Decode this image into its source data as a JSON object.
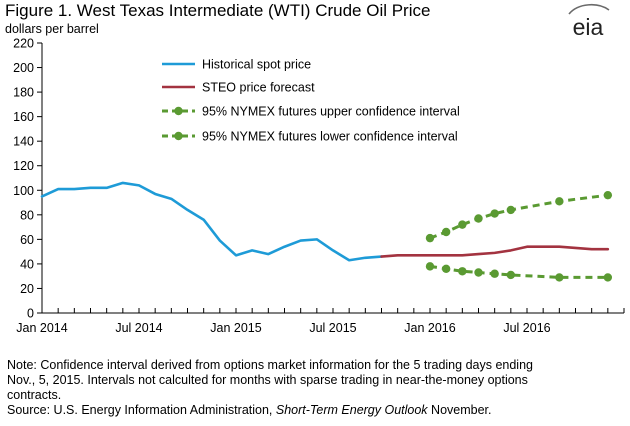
{
  "header": {
    "title": "Figure 1. West Texas Intermediate (WTI) Crude Oil Price",
    "units": "dollars per barrel",
    "logo_text": "eia"
  },
  "notes": {
    "line1": "Note: Confidence interval derived from options market information for the 5 trading days ending",
    "line2": "Nov., 5, 2015.  Intervals not calculted for months with sparse trading in near-the-money options",
    "line3": "contracts.",
    "source_prefix": "Source: U.S. Energy Information Administration, ",
    "source_italic": "Short-Term Energy Outlook",
    "source_suffix": " November."
  },
  "chart_data": {
    "type": "line",
    "title": "Figure 1. West Texas Intermediate (WTI) Crude Oil Price",
    "ylabel": "dollars per barrel",
    "ylim": [
      0,
      220
    ],
    "yticks": [
      0,
      20,
      40,
      60,
      80,
      100,
      120,
      140,
      160,
      180,
      200,
      220
    ],
    "xlim": [
      "2014-01",
      "2016-12"
    ],
    "xticks": [
      {
        "date": "2014-01",
        "label": "Jan 2014"
      },
      {
        "date": "2014-07",
        "label": "Jul 2014"
      },
      {
        "date": "2015-01",
        "label": "Jan 2015"
      },
      {
        "date": "2015-07",
        "label": "Jul 2015"
      },
      {
        "date": "2016-01",
        "label": "Jan 2016"
      },
      {
        "date": "2016-07",
        "label": "Jul 2016"
      }
    ],
    "grid": false,
    "legend_position": "top-center",
    "series": [
      {
        "name": "Historical spot price",
        "color": "#1e9bd7",
        "style": "solid",
        "x": [
          "2014-01",
          "2014-02",
          "2014-03",
          "2014-04",
          "2014-05",
          "2014-06",
          "2014-07",
          "2014-08",
          "2014-09",
          "2014-10",
          "2014-11",
          "2014-12",
          "2015-01",
          "2015-02",
          "2015-03",
          "2015-04",
          "2015-05",
          "2015-06",
          "2015-07",
          "2015-08",
          "2015-09",
          "2015-10"
        ],
        "y": [
          95,
          101,
          101,
          102,
          102,
          106,
          104,
          97,
          93,
          84,
          76,
          59,
          47,
          51,
          48,
          54,
          59,
          60,
          51,
          43,
          45,
          46
        ]
      },
      {
        "name": "STEO price forecast",
        "color": "#a33340",
        "style": "solid",
        "x": [
          "2015-10",
          "2015-11",
          "2015-12",
          "2016-01",
          "2016-02",
          "2016-03",
          "2016-04",
          "2016-05",
          "2016-06",
          "2016-07",
          "2016-08",
          "2016-09",
          "2016-10",
          "2016-11",
          "2016-12"
        ],
        "y": [
          46,
          47,
          47,
          47,
          47,
          47,
          48,
          49,
          51,
          54,
          54,
          54,
          53,
          52,
          52
        ]
      },
      {
        "name": "95% NYMEX futures upper confidence interval",
        "color": "#5a9a32",
        "style": "dashed-markers",
        "x": [
          "2016-01",
          "2016-02",
          "2016-03",
          "2016-04",
          "2016-05",
          "2016-06",
          "2016-09",
          "2016-12"
        ],
        "y": [
          61,
          66,
          72,
          77,
          81,
          84,
          91,
          96
        ]
      },
      {
        "name": "95% NYMEX futures lower confidence interval",
        "color": "#5a9a32",
        "style": "dashed-markers",
        "x": [
          "2016-01",
          "2016-02",
          "2016-03",
          "2016-04",
          "2016-05",
          "2016-06",
          "2016-09",
          "2016-12"
        ],
        "y": [
          38,
          36,
          34,
          33,
          32,
          31,
          29,
          29
        ]
      }
    ]
  }
}
